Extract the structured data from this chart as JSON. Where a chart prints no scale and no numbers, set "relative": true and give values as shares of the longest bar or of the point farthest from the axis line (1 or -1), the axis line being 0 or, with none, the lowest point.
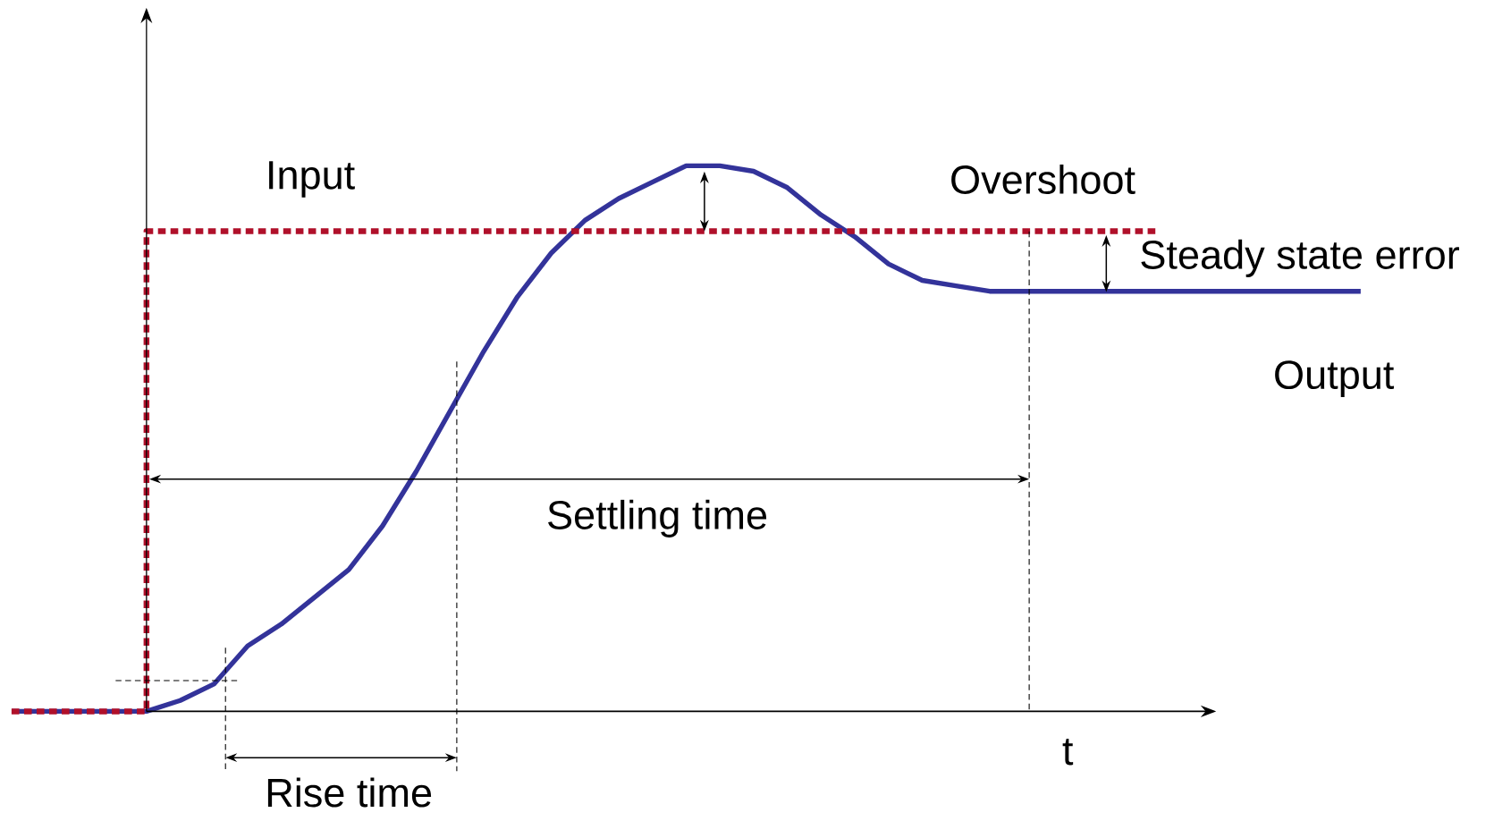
{
  "chart_data": {
    "type": "line",
    "relative": true,
    "xlabel": "t",
    "categories": [
      null,
      null,
      null,
      null,
      null,
      null,
      null,
      null,
      null,
      null,
      null,
      null,
      null,
      null,
      null,
      null,
      null,
      null,
      null,
      null,
      null,
      null,
      null,
      null,
      null,
      null,
      null,
      null,
      null,
      null,
      null,
      null,
      null,
      null,
      null,
      null,
      null,
      null,
      null,
      null,
      null
    ],
    "series": [
      {
        "name": "Input",
        "type": "step",
        "line_style": "dotted",
        "color": "#b0102a",
        "values": [
          0,
          0,
          0,
          0,
          0.88,
          0.88,
          0.88,
          0.88,
          0.88,
          0.88,
          0.88,
          0.88,
          0.88,
          0.88,
          0.88,
          0.88,
          0.88,
          0.88,
          0.88,
          0.88,
          0.88,
          0.88,
          0.88,
          0.88,
          0.88,
          0.88,
          0.88,
          0.88,
          0.88,
          0.88,
          0.88,
          0.88,
          0.88,
          0.88,
          0.88,
          null,
          null,
          null,
          null,
          null,
          null
        ]
      },
      {
        "name": "Output",
        "type": "line",
        "line_style": "solid",
        "color": "#33339a",
        "values": [
          0,
          0,
          0,
          0,
          0,
          0.02,
          0.05,
          0.12,
          0.16,
          0.21,
          0.26,
          0.34,
          0.44,
          0.55,
          0.66,
          0.76,
          0.84,
          0.9,
          0.94,
          0.97,
          1,
          1,
          0.99,
          0.96,
          0.91,
          0.87,
          0.82,
          0.79,
          0.78,
          0.77,
          0.77,
          0.77,
          0.77,
          0.77,
          0.77,
          0.77,
          0.77,
          0.77,
          0.77,
          0.77,
          0.77
        ]
      }
    ],
    "annotations": [
      "Overshoot",
      "Steady state error",
      "Settling time",
      "Rise time"
    ]
  }
}
